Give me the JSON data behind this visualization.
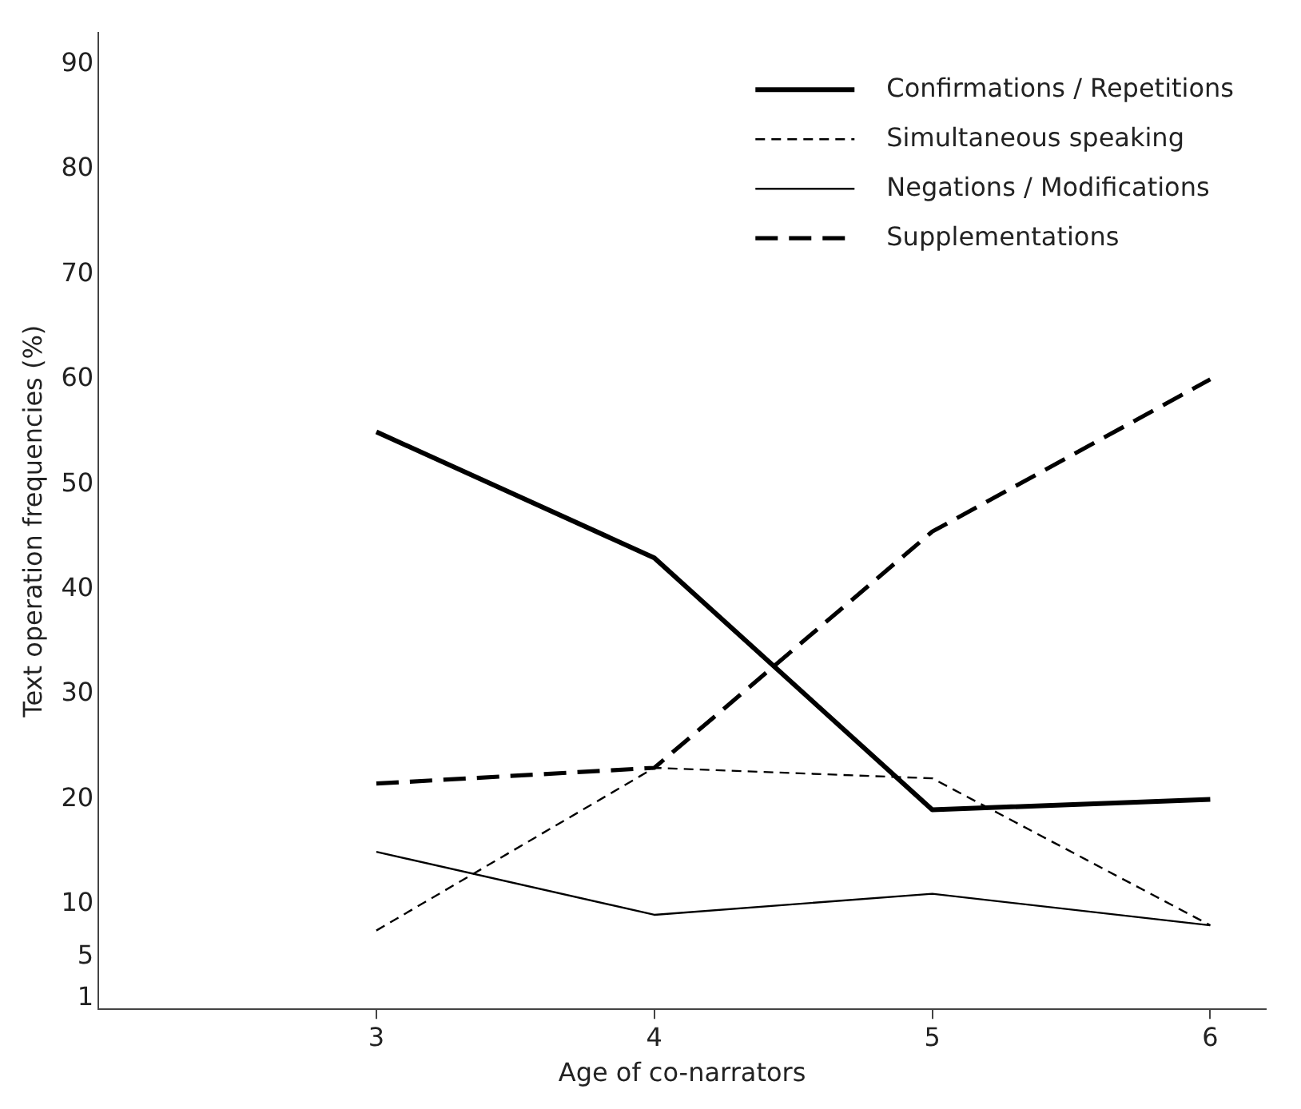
{
  "chart_data": {
    "type": "line",
    "xlabel": "Age of co-narrators",
    "ylabel": "Text operation frequencies (%)",
    "x": [
      3,
      4,
      5,
      6
    ],
    "series": [
      {
        "name": "Confirmations / Repetitions",
        "color": "#000000",
        "line_style": "solid",
        "values": [
          55,
          43,
          19,
          20
        ]
      },
      {
        "name": "Simultaneous speaking",
        "color": "#000000",
        "line_style": "dashed",
        "values": [
          7.5,
          23,
          22,
          8
        ]
      },
      {
        "name": "Negations / Modifications",
        "color": "#000000",
        "line_style": "solid",
        "values": [
          15,
          9,
          11,
          8
        ]
      },
      {
        "name": "Supplementations",
        "color": "#000000",
        "line_style": "dashed",
        "values": [
          21.5,
          23,
          45.5,
          60
        ]
      }
    ],
    "xlim": [
      2,
      6.2
    ],
    "xticks": [
      3,
      4,
      5,
      6
    ],
    "ylim": [
      0,
      93
    ],
    "yticks": [
      1,
      5,
      10,
      20,
      30,
      40,
      50,
      60,
      70,
      80,
      90
    ],
    "grid": false,
    "legend": "top right",
    "marker": "none"
  }
}
